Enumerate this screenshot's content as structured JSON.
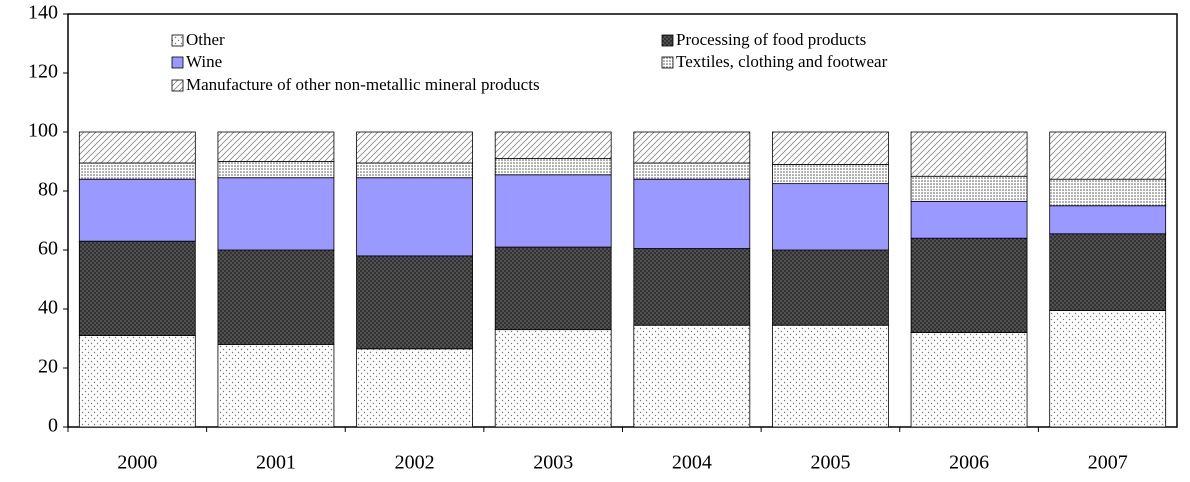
{
  "chart_data": {
    "type": "stacked-bar",
    "categories": [
      "2000",
      "2001",
      "2002",
      "2003",
      "2004",
      "2005",
      "2006",
      "2007"
    ],
    "series": [
      {
        "name": "Other",
        "color": "#ffffff",
        "pattern": "sparse-dots",
        "values": [
          31,
          28,
          26.5,
          33,
          34.5,
          34.5,
          32,
          39.5
        ]
      },
      {
        "name": "Processing of food products",
        "color": "#333333",
        "pattern": "dots",
        "values": [
          32,
          32,
          31.5,
          28,
          26,
          25.5,
          32,
          26
        ]
      },
      {
        "name": "Wine",
        "color": "#9999ff",
        "pattern": "solid",
        "values": [
          21,
          24.5,
          26.5,
          24.5,
          23.5,
          22.5,
          12.5,
          9.5
        ]
      },
      {
        "name": "Textiles, clothing and footwear",
        "color": "#ffffff",
        "pattern": "dense-dots",
        "values": [
          5.5,
          5.5,
          5,
          5.5,
          5.5,
          6.5,
          8.5,
          9
        ]
      },
      {
        "name": "Manufacture of other non-metallic mineral products",
        "color": "#ffffff",
        "pattern": "hatch",
        "values": [
          10.5,
          10,
          10.5,
          9,
          10.5,
          11,
          15,
          16
        ]
      }
    ],
    "ylim": [
      0,
      140
    ],
    "yticks": [
      0,
      20,
      40,
      60,
      80,
      100,
      120,
      140
    ]
  }
}
